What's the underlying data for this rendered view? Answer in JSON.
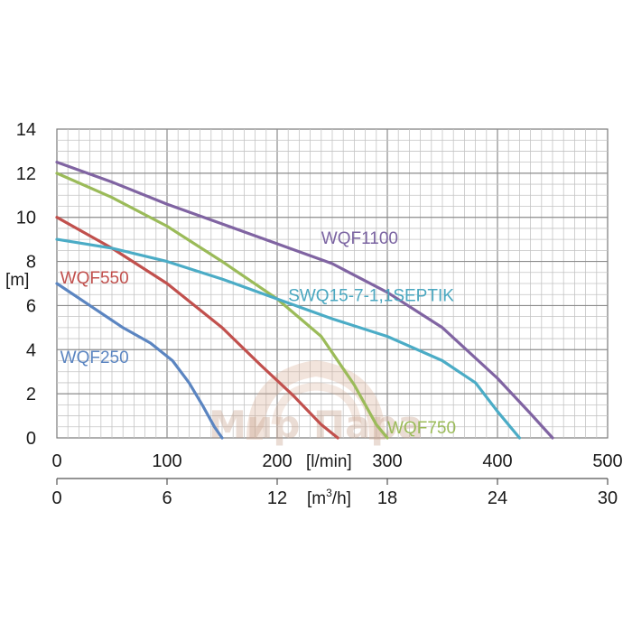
{
  "chart_data": {
    "type": "line",
    "title": "",
    "xlabel": "[l/min]",
    "x2label_main": "[m",
    "x2label_sup": "3",
    "x2label_end": "/h]",
    "ylabel": "[m]",
    "xlim": [
      0,
      500
    ],
    "ylim": [
      0,
      14
    ],
    "x_ticks": [
      "0",
      "100",
      "200",
      "300",
      "400",
      "500"
    ],
    "x_ticks_values": [
      0,
      100,
      200,
      300,
      400,
      500
    ],
    "x2_ticks": [
      "0",
      "6",
      "12",
      "18",
      "24",
      "30"
    ],
    "y_ticks": [
      "0",
      "2",
      "4",
      "6",
      "8",
      "10",
      "12",
      "14"
    ],
    "y_ticks_values": [
      0,
      2,
      4,
      6,
      8,
      10,
      12,
      14
    ],
    "grid": true,
    "series": [
      {
        "name": "WQF250",
        "color": "#5b85c1",
        "x": [
          0,
          30,
          60,
          85,
          105,
          120,
          132,
          143,
          150
        ],
        "y": [
          7.0,
          6.0,
          5.0,
          4.3,
          3.5,
          2.5,
          1.5,
          0.5,
          0
        ]
      },
      {
        "name": "WQF550",
        "color": "#c1504d",
        "x": [
          0,
          50,
          100,
          150,
          185,
          215,
          240,
          255
        ],
        "y": [
          10.0,
          8.6,
          7.0,
          5.0,
          3.3,
          1.9,
          0.6,
          0
        ]
      },
      {
        "name": "WQF750",
        "color": "#9bbb59",
        "x": [
          0,
          50,
          100,
          150,
          200,
          240,
          270,
          290,
          300
        ],
        "y": [
          12.0,
          10.9,
          9.6,
          8.0,
          6.3,
          4.6,
          2.4,
          0.6,
          0
        ]
      },
      {
        "name": "SWQ15-7-1,1SEPTIK",
        "color": "#4bacc6",
        "x": [
          0,
          50,
          100,
          150,
          200,
          250,
          300,
          350,
          380,
          400,
          420
        ],
        "y": [
          9.0,
          8.6,
          8.0,
          7.2,
          6.3,
          5.4,
          4.6,
          3.5,
          2.5,
          1.2,
          0
        ]
      },
      {
        "name": "WQF1100",
        "color": "#8064a2",
        "x": [
          0,
          50,
          100,
          150,
          200,
          250,
          300,
          350,
          400,
          430,
          450
        ],
        "y": [
          12.5,
          11.6,
          10.6,
          9.7,
          8.8,
          7.9,
          6.6,
          5.0,
          2.7,
          1.1,
          0
        ]
      }
    ],
    "labels": [
      {
        "series": "WQF1100",
        "text": "WQF1100",
        "color": "#7b64a2",
        "x": 240,
        "y": 8.8
      },
      {
        "series": "SWQ15-7-1,1SEPTIK",
        "text": "SWQ15-7-1,1SEPTIK",
        "color": "#4aa7c0",
        "x": 210,
        "y": 6.2
      },
      {
        "series": "WQF550",
        "text": "WQF550",
        "color": "#c1504d",
        "x": 3,
        "y": 7.0
      },
      {
        "series": "WQF250",
        "text": "WQF250",
        "color": "#5b85c1",
        "x": 3,
        "y": 3.4
      },
      {
        "series": "WQF750",
        "text": "WQF750",
        "color": "#9bbb59",
        "x": 300,
        "y": 0.2
      }
    ],
    "watermark": "Мир Пара"
  }
}
